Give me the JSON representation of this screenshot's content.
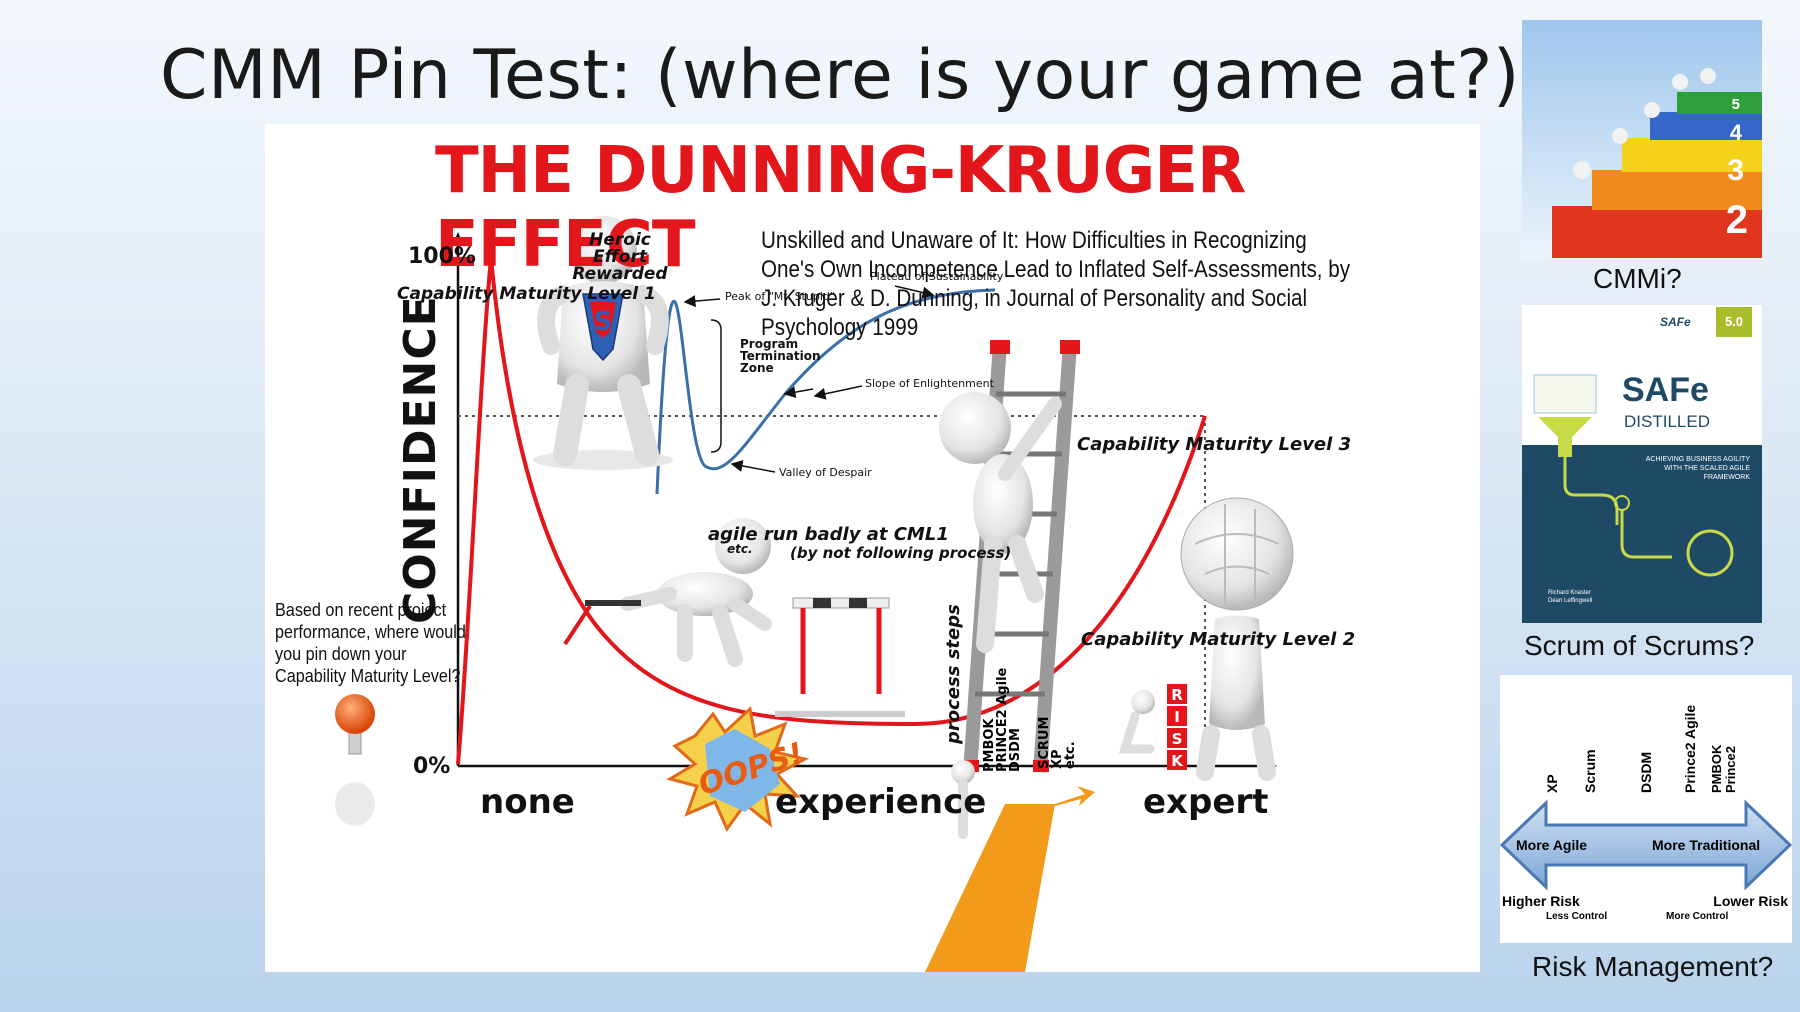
{
  "slide": {
    "title": "CMM Pin Test: (where is your game at?):"
  },
  "diagram": {
    "heading": "THE DUNNING-KRUGER EFFECT",
    "paper_reference": "Unskilled and Unaware of It: How Difficulties in Recognizing One's Own Incompetence Lead to Inflated Self-Assessments, by J. Kruger & D. Dunning, in Journal of Personality and Social Psychology 1999",
    "y_axis_label": "CONFIDENCE",
    "y_top": "100%",
    "y_bottom": "0%",
    "x_left": "none",
    "x_middle": "experience",
    "x_right": "expert",
    "level1": "Capability Maturity Level 1",
    "level2": "Capability Maturity Level 2",
    "level3": "Capability Maturity Level 3",
    "heroic": "Heroic Effort Rewarded",
    "peak": "Peak of \"Mt. Stupid\"",
    "termination": "Program Termination Zone",
    "slope": "Slope of Enlightenment",
    "plateau": "Plateau of Sustainability",
    "valley": "Valley of Despair",
    "agile_badly": "agile run badly at CML1",
    "agile_etc": "etc.",
    "not_following": "(by not following process)",
    "process_steps": "process steps",
    "ladder_left": [
      "PMBOK",
      "PRINCE2 Agile",
      "DSDM"
    ],
    "ladder_right": [
      "SCRUM",
      "XP",
      "etc."
    ],
    "pin_question": "Based on recent project performance, where would you pin down your Capability Maturity Level?",
    "oops": "OOPS!",
    "risk_letters": [
      "R",
      "I",
      "S",
      "K"
    ],
    "colors": {
      "red": "#e2161b",
      "blue": "#3b6fa8"
    }
  },
  "thumbnails": {
    "cmmi": {
      "caption": "CMMi?",
      "steps": [
        "2",
        "3",
        "4",
        "5"
      ]
    },
    "safe": {
      "caption": "Scrum of Scrums?",
      "brand": "SAFe",
      "version": "5.0",
      "title": "SAFe",
      "subtitle": "DISTILLED",
      "tagline": "ACHIEVING BUSINESS AGILITY WITH THE SCALED AGILE FRAMEWORK",
      "authors": [
        "Richard Knaster",
        "Dean Leffingwell"
      ]
    },
    "risk": {
      "caption": "Risk Management?",
      "methods": [
        "XP",
        "Scrum",
        "DSDM",
        "Prince2 Agile",
        "PMBOK Prince2"
      ],
      "left_arrow": "More Agile",
      "right_arrow": "More Traditional",
      "left_risk": "Higher Risk",
      "left_control": "Less Control",
      "right_risk": "Lower Risk",
      "right_control": "More Control"
    }
  }
}
